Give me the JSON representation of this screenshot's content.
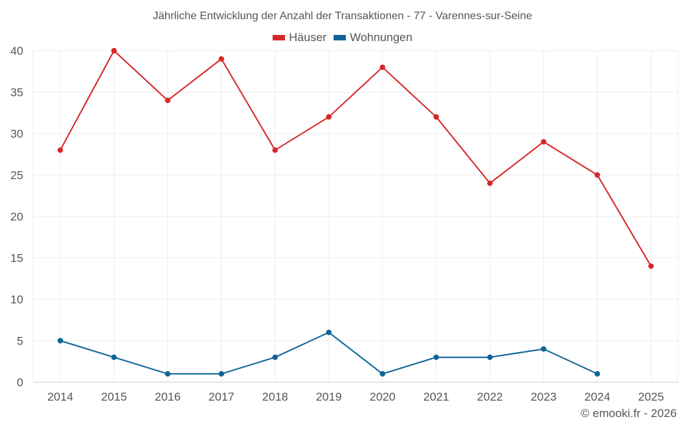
{
  "chart_data": {
    "type": "line",
    "title": "Jährliche Entwicklung der Anzahl der Transaktionen - 77 - Varennes-sur-Seine",
    "xlabel": "",
    "ylabel": "",
    "categories": [
      "2014",
      "2015",
      "2016",
      "2017",
      "2018",
      "2019",
      "2020",
      "2021",
      "2022",
      "2023",
      "2024",
      "2025"
    ],
    "ylim": [
      0,
      40
    ],
    "yticks": [
      0,
      5,
      10,
      15,
      20,
      25,
      30,
      35,
      40
    ],
    "grid": true,
    "legend_position": "top-center",
    "series": [
      {
        "name": "Häuser",
        "color": "#d62728",
        "values": [
          28,
          40,
          34,
          39,
          28,
          32,
          38,
          32,
          24,
          29,
          25,
          14
        ]
      },
      {
        "name": "Wohnungen",
        "color": "#0e6497",
        "values": [
          5,
          3,
          1,
          1,
          3,
          6,
          1,
          3,
          3,
          4,
          1,
          null
        ]
      }
    ]
  },
  "credit": "© emooki.fr - 2026"
}
